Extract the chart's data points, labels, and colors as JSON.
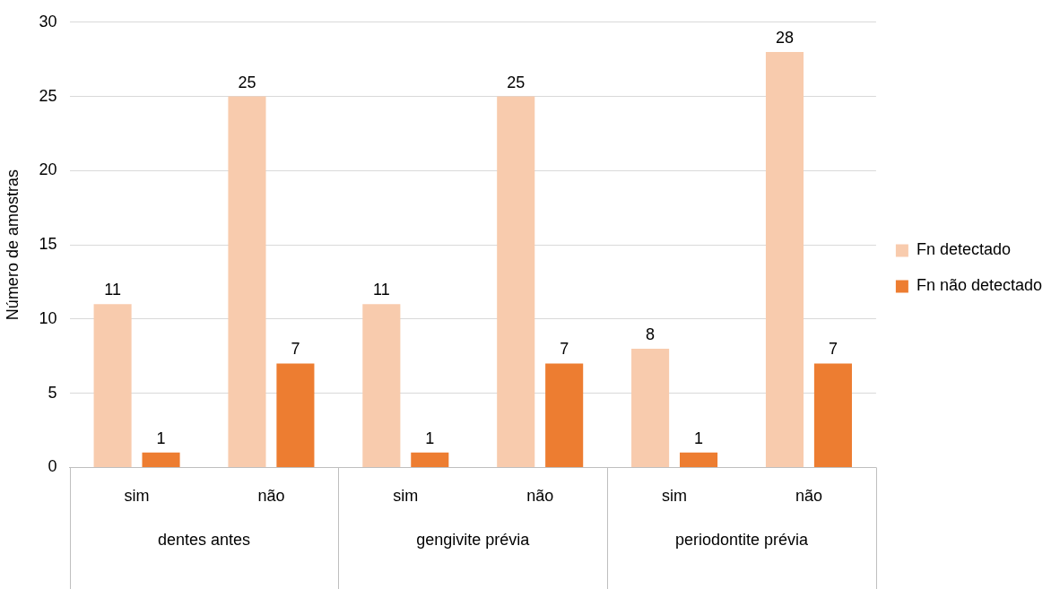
{
  "chart_data": {
    "type": "bar",
    "ylabel": "Número de amostras",
    "categories": [
      "sim",
      "não",
      "sim",
      "não",
      "sim",
      "não"
    ],
    "series": [
      {
        "name": "Fn detectado",
        "color": "#f8cbad",
        "values": [
          11,
          25,
          11,
          25,
          8,
          28
        ]
      },
      {
        "name": "Fn não detectado",
        "color": "#ed7d31",
        "values": [
          1,
          7,
          1,
          7,
          1,
          7
        ]
      }
    ],
    "annotations": [
      "dentes antes",
      "gengivite prévia",
      "periodontite prévia"
    ],
    "ylim": [
      0,
      30
    ],
    "yticks": [
      0,
      5,
      10,
      15,
      20,
      25,
      30
    ],
    "grid": "y",
    "legend": "right",
    "data_labels": true
  }
}
